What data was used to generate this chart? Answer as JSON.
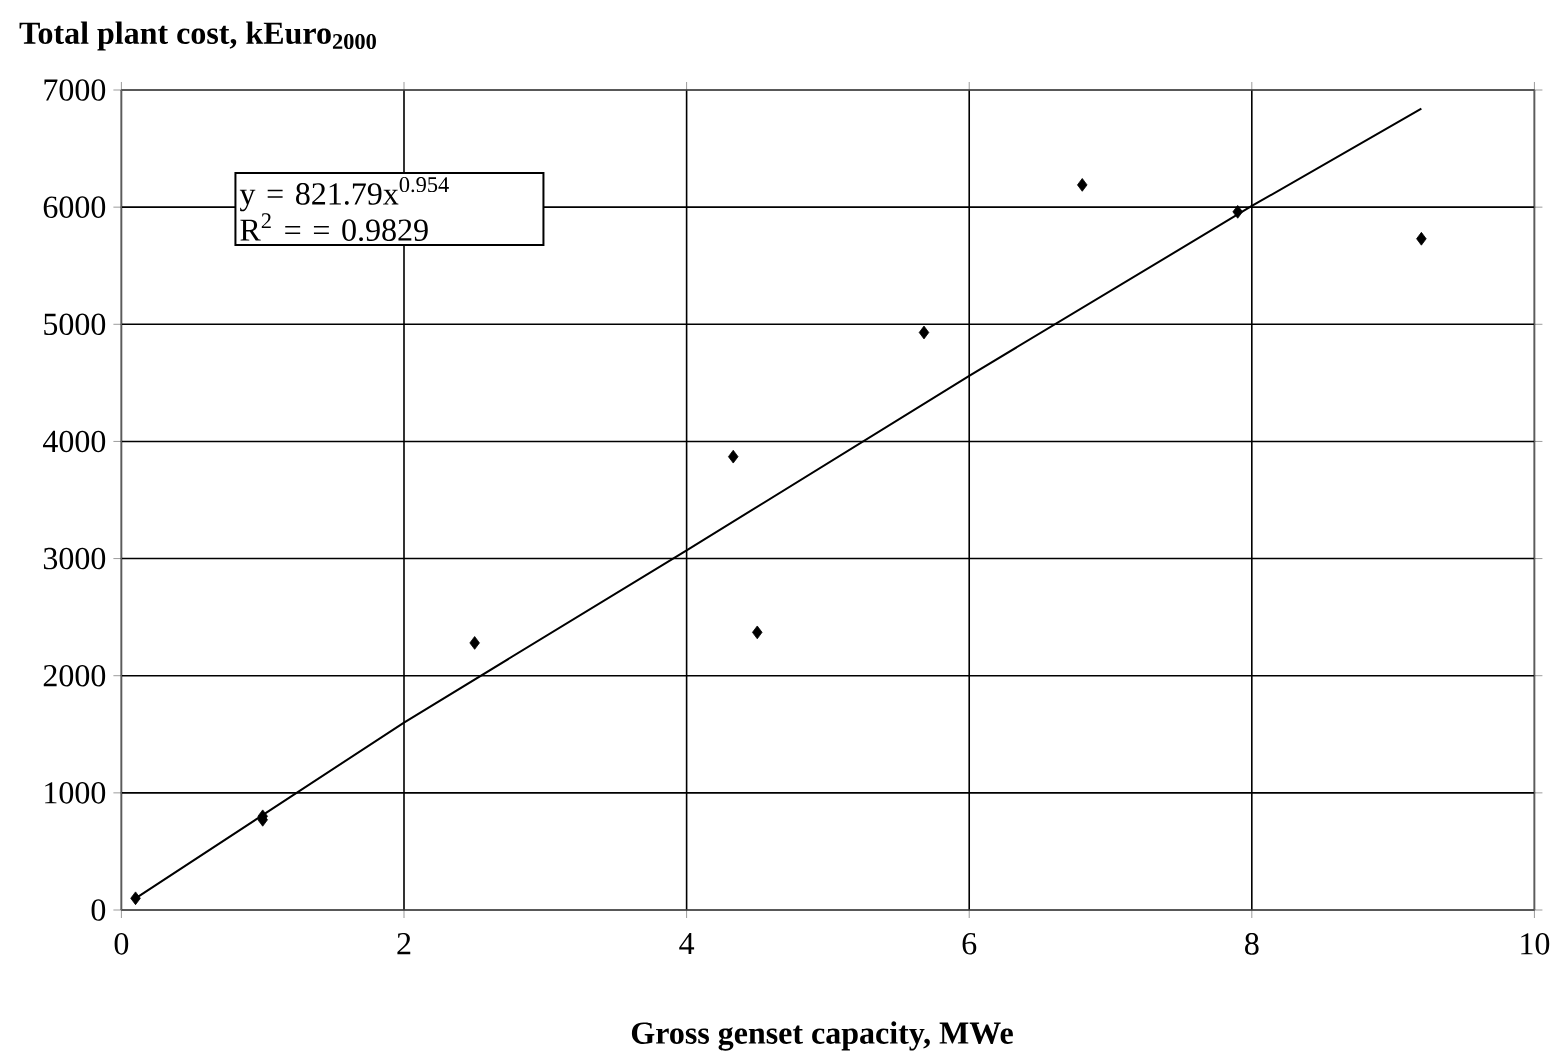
{
  "chart_data": {
    "type": "scatter",
    "title": "Total plant cost, kEuro$_{2000}$",
    "xlabel": "Gross genset capacity, MWe",
    "x": [
      0.1,
      1.0,
      1.0,
      2.5,
      4.33,
      4.5,
      5.68,
      6.8,
      7.9,
      9.2
    ],
    "series": [
      {
        "color": "#000000",
        "values": [
          100,
          800,
          770,
          2280,
          3870,
          2370,
          4930,
          6190,
          5960,
          5730
        ]
      },
      {
        "type": "line",
        "marker": "none",
        "color": "#000000",
        "x": [
          0.1,
          2,
          4,
          6,
          8,
          9.2
        ],
        "values": [
          100,
          1600,
          3070,
          4560,
          6010,
          6840
        ]
      }
    ],
    "annotations": [
      "y = 821.79x$^{0.954}$",
      "R$^{2}$ =  = 0.9829"
    ],
    "xlim": [
      0,
      10
    ],
    "ylim": [
      0,
      7000
    ],
    "xticks": [
      0,
      2,
      4,
      6,
      8,
      10
    ],
    "yticks": [
      0,
      1000,
      2000,
      3000,
      4000,
      5000,
      6000,
      7000
    ],
    "grid": true,
    "marker": "diamond",
    "line_style": "solid"
  }
}
